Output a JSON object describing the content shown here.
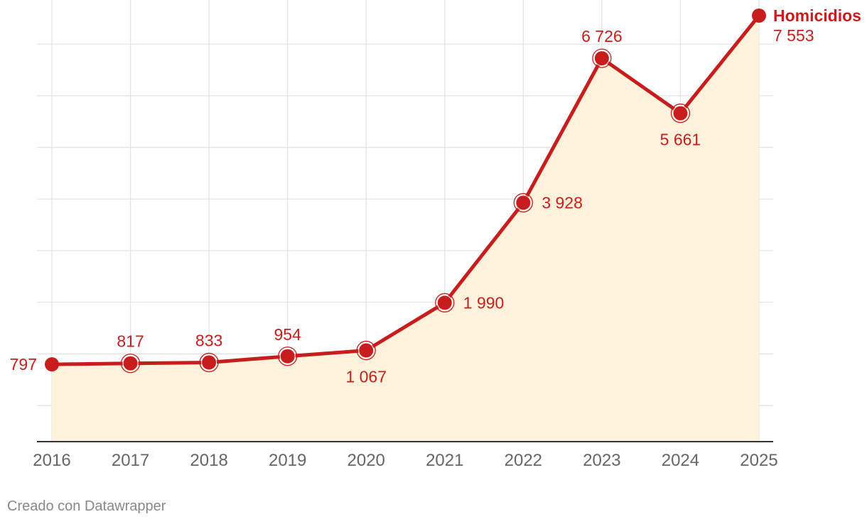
{
  "chart_data": {
    "type": "area",
    "x": [
      "2016",
      "2017",
      "2018",
      "2019",
      "2020",
      "2021",
      "2022",
      "2023",
      "2024",
      "2025"
    ],
    "series": [
      {
        "name": "Homicidios",
        "values": [
          797,
          817,
          833,
          954,
          1067,
          1990,
          3928,
          6726,
          5661,
          7553
        ],
        "labels": [
          "797",
          "817",
          "833",
          "954",
          "1 067",
          "1 990",
          "3 928",
          "6 726",
          "5 661",
          "7 553"
        ]
      }
    ],
    "ylim": [
      -700,
      7553
    ],
    "y_gridlines": [
      0,
      1000,
      2000,
      3000,
      4000,
      5000,
      6000,
      7000
    ],
    "grid": true,
    "colors": {
      "line": "#c71e1d",
      "fill": "#fdf3dc",
      "grid": "#e2e2e2",
      "axis": "#333333"
    }
  },
  "footer": {
    "credit": "Creado con Datawrapper"
  }
}
